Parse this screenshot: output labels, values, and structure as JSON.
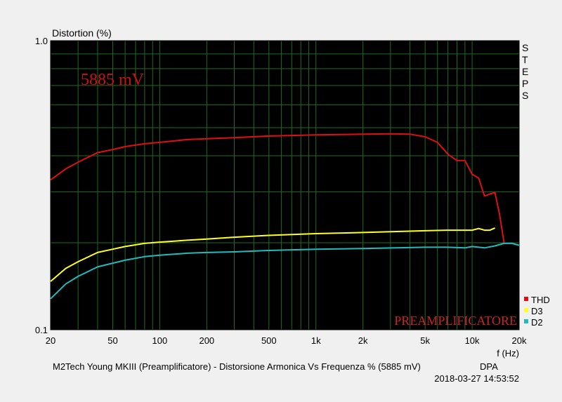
{
  "chart_data": {
    "type": "line",
    "y_scale": "log",
    "x_scale": "log",
    "ylabel": "Distortion (%)",
    "xlabel": "f (Hz)",
    "xlim": [
      20,
      20000
    ],
    "ylim": [
      0.1,
      1.0
    ],
    "y_ticks": [
      {
        "value": 0.1,
        "label": "0.1"
      },
      {
        "value": 1.0,
        "label": "1.0"
      }
    ],
    "x_ticks": [
      {
        "value": 20,
        "label": "20"
      },
      {
        "value": 50,
        "label": "50"
      },
      {
        "value": 100,
        "label": "100"
      },
      {
        "value": 200,
        "label": "200"
      },
      {
        "value": 500,
        "label": "500"
      },
      {
        "value": 1000,
        "label": "1k"
      },
      {
        "value": 2000,
        "label": "2k"
      },
      {
        "value": 5000,
        "label": "5k"
      },
      {
        "value": 10000,
        "label": "10k"
      },
      {
        "value": 20000,
        "label": "20k"
      }
    ],
    "grid": true,
    "background": "#000000",
    "grid_color": "#1f6b1f",
    "annotation": "5885 mV",
    "annotation_color": "#cc1111",
    "watermark": "PREAMPLIFICATORE",
    "watermark_color": "#cc2222",
    "side_label": [
      "S",
      "T",
      "E",
      "P",
      "S"
    ],
    "legend_position": "bottom-right",
    "series": [
      {
        "name": "THD",
        "color": "#dd1111",
        "points": [
          [
            20,
            0.33
          ],
          [
            25,
            0.36
          ],
          [
            30,
            0.38
          ],
          [
            40,
            0.41
          ],
          [
            50,
            0.42
          ],
          [
            60,
            0.43
          ],
          [
            80,
            0.44
          ],
          [
            100,
            0.445
          ],
          [
            150,
            0.455
          ],
          [
            200,
            0.458
          ],
          [
            300,
            0.462
          ],
          [
            500,
            0.468
          ],
          [
            700,
            0.47
          ],
          [
            1000,
            0.472
          ],
          [
            2000,
            0.475
          ],
          [
            3000,
            0.476
          ],
          [
            4000,
            0.475
          ],
          [
            5000,
            0.465
          ],
          [
            6000,
            0.445
          ],
          [
            7000,
            0.405
          ],
          [
            8000,
            0.385
          ],
          [
            9000,
            0.385
          ],
          [
            10000,
            0.345
          ],
          [
            11000,
            0.335
          ],
          [
            12000,
            0.29
          ],
          [
            13000,
            0.295
          ],
          [
            14000,
            0.298
          ],
          [
            15000,
            0.25
          ],
          [
            16000,
            0.2
          ]
        ]
      },
      {
        "name": "D3",
        "color": "#ffff22",
        "points": [
          [
            20,
            0.147
          ],
          [
            25,
            0.163
          ],
          [
            30,
            0.172
          ],
          [
            40,
            0.185
          ],
          [
            50,
            0.19
          ],
          [
            60,
            0.194
          ],
          [
            80,
            0.199
          ],
          [
            100,
            0.201
          ],
          [
            150,
            0.204
          ],
          [
            200,
            0.206
          ],
          [
            300,
            0.209
          ],
          [
            500,
            0.212
          ],
          [
            1000,
            0.215
          ],
          [
            2000,
            0.217
          ],
          [
            5000,
            0.22
          ],
          [
            7000,
            0.221
          ],
          [
            10000,
            0.221
          ],
          [
            11000,
            0.224
          ],
          [
            12000,
            0.221
          ],
          [
            13000,
            0.221
          ],
          [
            14000,
            0.225
          ]
        ]
      },
      {
        "name": "D2",
        "color": "#22bbbb",
        "points": [
          [
            20,
            0.128
          ],
          [
            25,
            0.144
          ],
          [
            30,
            0.153
          ],
          [
            40,
            0.165
          ],
          [
            50,
            0.17
          ],
          [
            60,
            0.174
          ],
          [
            80,
            0.179
          ],
          [
            100,
            0.181
          ],
          [
            150,
            0.184
          ],
          [
            200,
            0.185
          ],
          [
            300,
            0.186
          ],
          [
            500,
            0.188
          ],
          [
            1000,
            0.19
          ],
          [
            2000,
            0.191
          ],
          [
            5000,
            0.193
          ],
          [
            7000,
            0.193
          ],
          [
            9000,
            0.192
          ],
          [
            10000,
            0.194
          ],
          [
            12000,
            0.192
          ],
          [
            14000,
            0.195
          ],
          [
            16000,
            0.199
          ],
          [
            18000,
            0.199
          ],
          [
            20000,
            0.196
          ]
        ]
      }
    ]
  },
  "footer": {
    "title": "M2Tech Young MKIII (Preamplificatore) - Distorsione Armonica Vs Frequenza % (5885 mV)",
    "app": "DPA",
    "timestamp": "2018-03-27 14:53:52"
  }
}
